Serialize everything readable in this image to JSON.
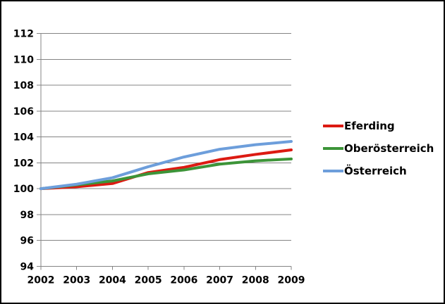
{
  "window": {
    "background": "#FFFFFF",
    "border_color": "#000000"
  },
  "chart_data": {
    "type": "line",
    "title": "",
    "xlabel": "",
    "ylabel": "",
    "x": [
      2002,
      2003,
      2004,
      2005,
      2006,
      2007,
      2008,
      2009
    ],
    "xtick_labels": [
      "2002",
      "2003",
      "2004",
      "2005",
      "2006",
      "2007",
      "2008",
      "2009"
    ],
    "ylim": [
      94,
      112
    ],
    "yticks": [
      94,
      96,
      98,
      100,
      102,
      104,
      106,
      108,
      110,
      112
    ],
    "grid": true,
    "legend_position": "right",
    "grid_color": "#848484",
    "axis_color": "#848484",
    "tick_label_color": "#000000",
    "series": [
      {
        "name": "Eferding",
        "color": "#DC1A12",
        "values": [
          100,
          100.15,
          100.4,
          101.25,
          101.65,
          102.25,
          102.65,
          103.0
        ]
      },
      {
        "name": "Oberösterreich",
        "color": "#3C9438",
        "values": [
          100,
          100.3,
          100.6,
          101.15,
          101.45,
          101.9,
          102.15,
          102.3
        ]
      },
      {
        "name": "Österreich",
        "color": "#6D9EDB",
        "values": [
          100,
          100.35,
          100.85,
          101.7,
          102.45,
          103.05,
          103.4,
          103.65
        ]
      }
    ]
  }
}
